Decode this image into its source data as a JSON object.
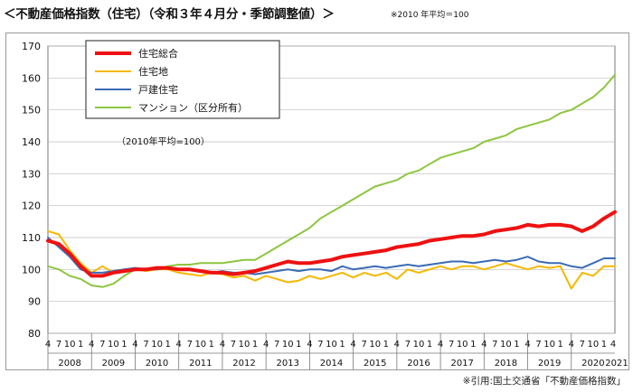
{
  "header": {
    "title": "＜不動産価格指数（住宅）（令和３年４月分・季節調整値）＞",
    "note": "※2010 年平均＝100"
  },
  "footer": {
    "source": "※引用:国土交通省「不動産価格指数」"
  },
  "chart_data": {
    "type": "line",
    "title": "",
    "xlabel": "",
    "ylabel": "",
    "ylim": [
      80,
      170
    ],
    "yticks": [
      80,
      90,
      100,
      110,
      120,
      130,
      140,
      150,
      160,
      170
    ],
    "month_labels": [
      "4",
      "7",
      "10",
      "1"
    ],
    "final_month_label": "4",
    "year_labels": [
      "2008",
      "2009",
      "2010",
      "2011",
      "2012",
      "2013",
      "2014",
      "2015",
      "2016",
      "2017",
      "2018",
      "2019",
      "2020",
      "2021"
    ],
    "x_range": [
      "2008-04",
      "2021-04"
    ],
    "grid": true,
    "legend_position": "top-left",
    "annotation": "（2010年平均=100）",
    "series": [
      {
        "name": "住宅総合",
        "color": "#ee1111",
        "x": [
          "2008-04",
          "2008-07",
          "2008-10",
          "2009-01",
          "2009-04",
          "2009-07",
          "2009-10",
          "2010-01",
          "2010-04",
          "2010-07",
          "2010-10",
          "2011-01",
          "2011-04",
          "2011-07",
          "2011-10",
          "2012-01",
          "2012-04",
          "2012-07",
          "2012-10",
          "2013-01",
          "2013-04",
          "2013-07",
          "2013-10",
          "2014-01",
          "2014-04",
          "2014-07",
          "2014-10",
          "2015-01",
          "2015-04",
          "2015-07",
          "2015-10",
          "2016-01",
          "2016-04",
          "2016-07",
          "2016-10",
          "2017-01",
          "2017-04",
          "2017-07",
          "2017-10",
          "2018-01",
          "2018-04",
          "2018-07",
          "2018-10",
          "2019-01",
          "2019-04",
          "2019-07",
          "2019-10",
          "2020-01",
          "2020-04",
          "2020-07",
          "2020-10",
          "2021-01",
          "2021-04"
        ],
        "values": [
          109,
          108,
          105,
          101,
          98,
          98,
          99,
          99.5,
          100,
          100,
          100.5,
          100.5,
          100,
          100,
          99.5,
          99,
          99,
          98.5,
          99,
          99.5,
          100.5,
          101.5,
          102.5,
          102,
          102,
          102.5,
          103,
          104,
          104.5,
          105,
          105.5,
          106,
          107,
          107.5,
          108,
          109,
          109.5,
          110,
          110.5,
          110.5,
          111,
          112,
          112.5,
          113,
          114,
          113.5,
          114,
          114,
          113.5,
          112,
          113.5,
          116,
          118
        ]
      },
      {
        "name": "住宅地",
        "color": "#f5b800",
        "x": [
          "2008-04",
          "2008-07",
          "2008-10",
          "2009-01",
          "2009-04",
          "2009-07",
          "2009-10",
          "2010-01",
          "2010-04",
          "2010-07",
          "2010-10",
          "2011-01",
          "2011-04",
          "2011-07",
          "2011-10",
          "2012-01",
          "2012-04",
          "2012-07",
          "2012-10",
          "2013-01",
          "2013-04",
          "2013-07",
          "2013-10",
          "2014-01",
          "2014-04",
          "2014-07",
          "2014-10",
          "2015-01",
          "2015-04",
          "2015-07",
          "2015-10",
          "2016-01",
          "2016-04",
          "2016-07",
          "2016-10",
          "2017-01",
          "2017-04",
          "2017-07",
          "2017-10",
          "2018-01",
          "2018-04",
          "2018-07",
          "2018-10",
          "2019-01",
          "2019-04",
          "2019-07",
          "2019-10",
          "2020-01",
          "2020-04",
          "2020-07",
          "2020-10",
          "2021-01",
          "2021-04"
        ],
        "values": [
          112,
          111,
          106,
          102,
          99,
          101,
          99,
          100,
          100,
          99.5,
          100,
          100,
          99,
          98.5,
          98,
          99,
          98.5,
          97.5,
          98,
          96.5,
          98,
          97,
          96,
          96.5,
          98,
          97,
          98,
          99,
          97.5,
          99,
          98,
          99,
          97,
          100,
          99,
          100,
          101,
          100,
          101,
          101,
          100,
          101,
          102,
          101,
          100,
          101,
          100.5,
          101,
          94,
          99,
          98,
          101,
          101
        ]
      },
      {
        "name": "戸建住宅",
        "color": "#3a6bb5",
        "x": [
          "2008-04",
          "2008-07",
          "2008-10",
          "2009-01",
          "2009-04",
          "2009-07",
          "2009-10",
          "2010-01",
          "2010-04",
          "2010-07",
          "2010-10",
          "2011-01",
          "2011-04",
          "2011-07",
          "2011-10",
          "2012-01",
          "2012-04",
          "2012-07",
          "2012-10",
          "2013-01",
          "2013-04",
          "2013-07",
          "2013-10",
          "2014-01",
          "2014-04",
          "2014-07",
          "2014-10",
          "2015-01",
          "2015-04",
          "2015-07",
          "2015-10",
          "2016-01",
          "2016-04",
          "2016-07",
          "2016-10",
          "2017-01",
          "2017-04",
          "2017-07",
          "2017-10",
          "2018-01",
          "2018-04",
          "2018-07",
          "2018-10",
          "2019-01",
          "2019-04",
          "2019-07",
          "2019-10",
          "2020-01",
          "2020-04",
          "2020-07",
          "2020-10",
          "2021-01",
          "2021-04"
        ],
        "values": [
          110,
          107,
          104,
          100,
          99,
          99,
          99.5,
          100,
          100.5,
          100,
          100,
          100.5,
          100,
          100,
          99.5,
          99,
          99.5,
          99,
          99,
          98.5,
          99,
          99.5,
          100,
          99.5,
          100,
          100,
          99.5,
          101,
          100,
          100.5,
          101,
          100.5,
          101,
          101.5,
          101,
          101.5,
          102,
          102.5,
          102.5,
          102,
          102.5,
          103,
          102.5,
          103,
          104,
          102.5,
          102,
          102,
          101,
          100.5,
          102,
          103.5,
          103.5
        ]
      },
      {
        "name": "マンション（区分所有）",
        "color": "#8cc63f",
        "x": [
          "2008-04",
          "2008-07",
          "2008-10",
          "2009-01",
          "2009-04",
          "2009-07",
          "2009-10",
          "2010-01",
          "2010-04",
          "2010-07",
          "2010-10",
          "2011-01",
          "2011-04",
          "2011-07",
          "2011-10",
          "2012-01",
          "2012-04",
          "2012-07",
          "2012-10",
          "2013-01",
          "2013-04",
          "2013-07",
          "2013-10",
          "2014-01",
          "2014-04",
          "2014-07",
          "2014-10",
          "2015-01",
          "2015-04",
          "2015-07",
          "2015-10",
          "2016-01",
          "2016-04",
          "2016-07",
          "2016-10",
          "2017-01",
          "2017-04",
          "2017-07",
          "2017-10",
          "2018-01",
          "2018-04",
          "2018-07",
          "2018-10",
          "2019-01",
          "2019-04",
          "2019-07",
          "2019-10",
          "2020-01",
          "2020-04",
          "2020-07",
          "2020-10",
          "2021-01",
          "2021-04"
        ],
        "values": [
          101,
          100,
          98,
          97,
          95,
          94.5,
          95.5,
          98,
          100,
          100,
          100,
          101,
          101.5,
          101.5,
          102,
          102,
          102,
          102.5,
          103,
          103,
          105,
          107,
          109,
          111,
          113,
          116,
          118,
          120,
          122,
          124,
          126,
          127,
          128,
          130,
          131,
          133,
          135,
          136,
          137,
          138,
          140,
          141,
          142,
          144,
          145,
          146,
          147,
          149,
          150,
          152,
          154,
          157,
          161
        ]
      }
    ]
  }
}
